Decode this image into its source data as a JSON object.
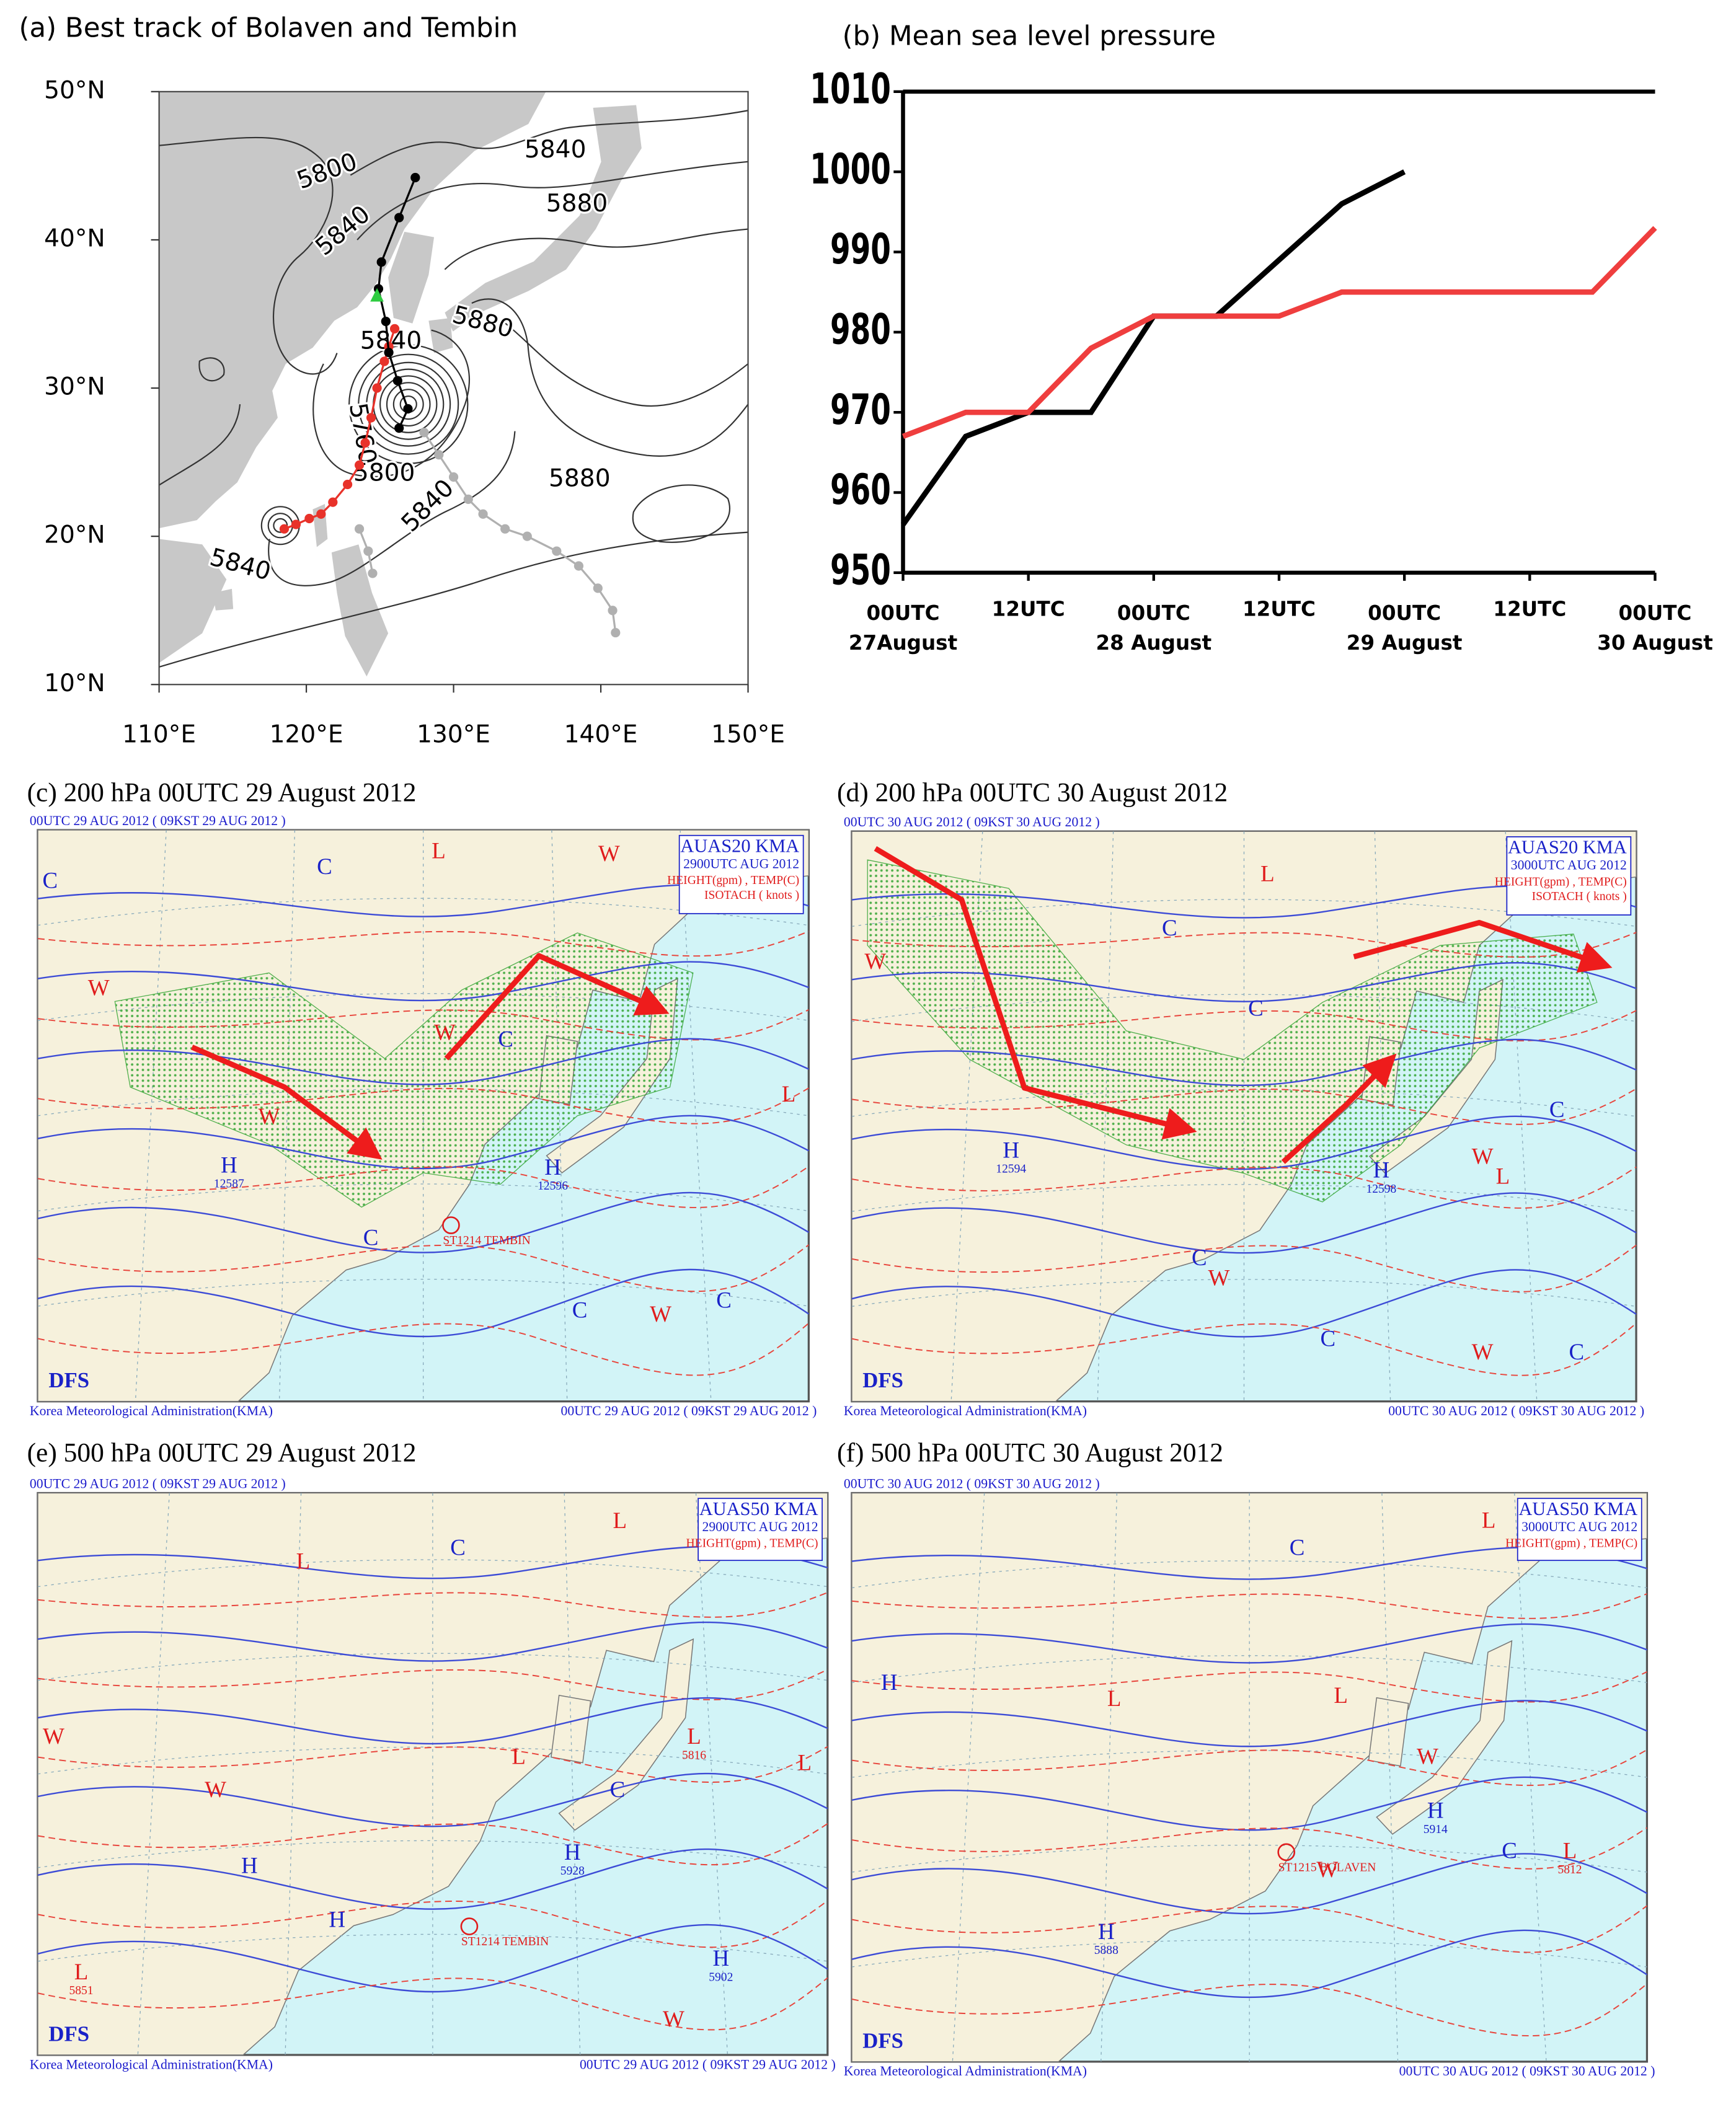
{
  "chart_data": [
    {
      "type": "map",
      "title": "(a) Best track of Bolaven and Tembin",
      "xlim": [
        110,
        150
      ],
      "ylim": [
        10,
        50
      ],
      "xticks": [
        {
          "value": 110,
          "label": "110°E"
        },
        {
          "value": 120,
          "label": "120°E"
        },
        {
          "value": 130,
          "label": "130°E"
        },
        {
          "value": 140,
          "label": "140°E"
        },
        {
          "value": 150,
          "label": "150°E"
        }
      ],
      "yticks": [
        {
          "value": 10,
          "label": "10°N"
        },
        {
          "value": 20,
          "label": "20°N"
        },
        {
          "value": 30,
          "label": "30°N"
        },
        {
          "value": 40,
          "label": "40°N"
        },
        {
          "value": 50,
          "label": "50°N"
        }
      ],
      "contour_labels": [
        "5800",
        "5840",
        "5880",
        "5840",
        "5880",
        "5840",
        "5760",
        "5800",
        "5880",
        "5840",
        "5840"
      ],
      "series": [
        {
          "color": "#b0b0b0",
          "x": [
            141.0,
            140.8,
            139.8,
            138.5,
            137.0,
            135.0,
            133.5,
            132.0,
            131.0,
            130.0,
            129.0,
            128.0
          ],
          "values": [
            13.5,
            15.0,
            16.5,
            18.0,
            19.0,
            20.0,
            20.5,
            21.5,
            22.5,
            24.0,
            25.5,
            27.0
          ]
        },
        {
          "color": "#b0b0b0",
          "x": [
            124.5,
            124.2,
            123.6
          ],
          "values": [
            17.5,
            19.0,
            20.5
          ]
        },
        {
          "color": "#e8322a",
          "x": [
            118.5,
            119.3,
            120.2,
            121.0,
            121.8,
            122.8,
            123.6,
            124.0,
            124.4,
            124.8,
            125.3,
            125.6,
            126.0
          ],
          "values": [
            20.5,
            20.8,
            21.2,
            21.5,
            22.3,
            23.5,
            24.8,
            26.3,
            28.0,
            30.0,
            31.8,
            32.8,
            34.0
          ]
        },
        {
          "color": "#000000",
          "x": [
            126.3,
            126.9,
            126.2,
            125.6,
            125.4,
            124.9,
            125.1,
            126.3,
            127.4
          ],
          "values": [
            27.3,
            28.6,
            30.5,
            32.4,
            34.5,
            36.7,
            38.5,
            41.5,
            44.2
          ]
        }
      ],
      "marker": {
        "color": "#2ecc40",
        "x": 124.8,
        "y": 36.2
      }
    },
    {
      "type": "line",
      "title": "(b) Mean sea level pressure",
      "categories": [
        "00UTC 27August",
        null,
        "12UTC",
        null,
        "00UTC 28 August",
        null,
        "12UTC",
        null,
        "00UTC 29 August",
        null,
        "12UTC",
        null,
        "00UTC 30 August"
      ],
      "series": [
        {
          "color": "#000000",
          "values": [
            956,
            967,
            970,
            970,
            982,
            982,
            989,
            996,
            1000,
            null,
            null,
            null,
            null
          ]
        },
        {
          "color": "#ef3e3e",
          "values": [
            967,
            970,
            970,
            978,
            982,
            982,
            982,
            985,
            985,
            985,
            985,
            985,
            993
          ]
        }
      ],
      "ylim": [
        950,
        1010
      ],
      "yticks": [
        950,
        960,
        970,
        980,
        990,
        1000,
        1010
      ]
    }
  ],
  "weather_maps": [
    {
      "title": "(c) 200 hPa 00UTC 29 August 2012",
      "header": "00UTC 29 AUG 2012 ( 09KST 29 AUG 2012 )",
      "stamp": [
        "AUAS20 KMA",
        "2900UTC AUG 2012"
      ],
      "stamp_red": [
        "HEIGHT(gpm) , TEMP(C)",
        "ISOTACH   ( knots )"
      ],
      "logo": "DFS",
      "footer_left": "Korea Meteorological Administration(KMA)",
      "footer_right": "00UTC 29 AUG 2012 ( 09KST 29 AUG 2012 )",
      "typhoon_label": "ST1214 TEMBIN",
      "symbols": [
        {
          "letter": "C"
        },
        {
          "letter": "L"
        },
        {
          "letter": "W"
        },
        {
          "letter": "C"
        },
        {
          "letter": "W"
        },
        {
          "letter": "C"
        },
        {
          "letter": "W"
        },
        {
          "letter": "H",
          "value": 12587
        },
        {
          "letter": "H",
          "value": 12596
        },
        {
          "letter": "C"
        },
        {
          "letter": "C"
        },
        {
          "letter": "W"
        },
        {
          "letter": "C"
        },
        {
          "letter": "W"
        },
        {
          "letter": "L"
        }
      ]
    },
    {
      "title": "(d) 200 hPa 00UTC 30 August 2012",
      "header": "00UTC 30 AUG 2012 ( 09KST 30 AUG 2012 )",
      "stamp": [
        "AUAS20 KMA",
        "3000UTC AUG 2012"
      ],
      "stamp_red": [
        "HEIGHT(gpm) , TEMP(C)",
        "ISOTACH   ( knots )"
      ],
      "logo": "DFS",
      "footer_left": "Korea Meteorological Administration(KMA)",
      "footer_right": "00UTC 30 AUG 2012 ( 09KST 30 AUG 2012 )",
      "symbols": [
        {
          "letter": "L"
        },
        {
          "letter": "C"
        },
        {
          "letter": "C"
        },
        {
          "letter": "W"
        },
        {
          "letter": "H",
          "value": 12594
        },
        {
          "letter": "H",
          "value": 12598
        },
        {
          "letter": "L"
        },
        {
          "letter": "W"
        },
        {
          "letter": "C"
        },
        {
          "letter": "W"
        },
        {
          "letter": "C"
        },
        {
          "letter": "W"
        },
        {
          "letter": "C"
        },
        {
          "letter": "C"
        }
      ]
    },
    {
      "title": "(e) 500 hPa 00UTC 29 August 2012",
      "header": "00UTC 29 AUG 2012 ( 09KST 29 AUG 2012 )",
      "stamp": [
        "AUAS50 KMA",
        "2900UTC AUG 2012"
      ],
      "stamp_red": [
        "HEIGHT(gpm) , TEMP(C)"
      ],
      "logo": "DFS",
      "footer_left": "Korea Meteorological Administration(KMA)",
      "footer_right": "00UTC 29 AUG 2012 ( 09KST 29 AUG 2012 )",
      "typhoon_label": "ST1214 TEMBIN",
      "symbols": [
        {
          "letter": "C"
        },
        {
          "letter": "L"
        },
        {
          "letter": "L"
        },
        {
          "letter": "W"
        },
        {
          "letter": "L"
        },
        {
          "letter": "L",
          "value": 5816
        },
        {
          "letter": "L"
        },
        {
          "letter": "C"
        },
        {
          "letter": "W"
        },
        {
          "letter": "H"
        },
        {
          "letter": "H",
          "value": 5928
        },
        {
          "letter": "H"
        },
        {
          "letter": "L",
          "value": 5851
        },
        {
          "letter": "H",
          "value": 5902
        },
        {
          "letter": "W"
        }
      ]
    },
    {
      "title": "(f) 500 hPa 00UTC 30 August 2012",
      "header": "00UTC 30 AUG 2012 ( 09KST 30 AUG 2012 )",
      "stamp": [
        "AUAS50 KMA",
        "3000UTC AUG 2012"
      ],
      "stamp_red": [
        "HEIGHT(gpm) , TEMP(C)"
      ],
      "logo": "DFS",
      "footer_left": "Korea Meteorological Administration(KMA)",
      "footer_right": "00UTC 30 AUG 2012 ( 09KST 30 AUG 2012 )",
      "typhoon_label": "ST1215 BOLAVEN",
      "symbols": [
        {
          "letter": "C"
        },
        {
          "letter": "L"
        },
        {
          "letter": "H"
        },
        {
          "letter": "L"
        },
        {
          "letter": "L"
        },
        {
          "letter": "W"
        },
        {
          "letter": "H",
          "value": 5914
        },
        {
          "letter": "C"
        },
        {
          "letter": "L",
          "value": 5812
        },
        {
          "letter": "H",
          "value": 5888
        },
        {
          "letter": "W"
        }
      ]
    }
  ]
}
